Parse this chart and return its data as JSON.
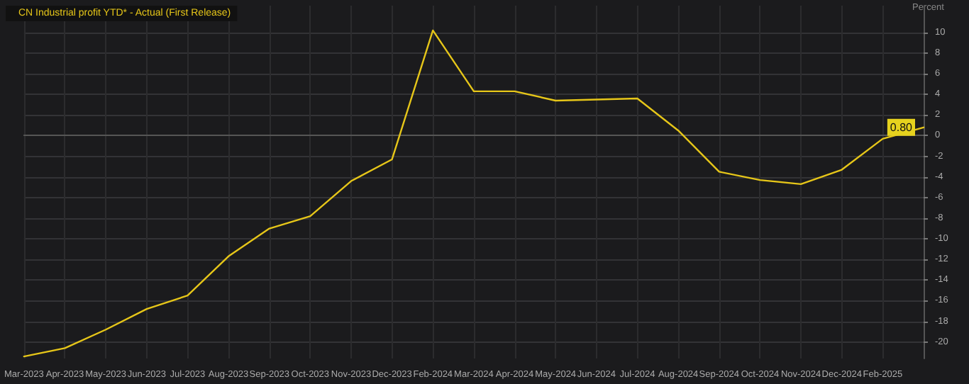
{
  "chart_data": {
    "type": "line",
    "ylabel": "Percent",
    "categories": [
      "Mar-2023",
      "Apr-2023",
      "May-2023",
      "Jun-2023",
      "Jul-2023",
      "Aug-2023",
      "Sep-2023",
      "Oct-2023",
      "Nov-2023",
      "Dec-2023",
      "Feb-2024",
      "Mar-2024",
      "Apr-2024",
      "May-2024",
      "Jun-2024",
      "Jul-2024",
      "Aug-2024",
      "Sep-2024",
      "Oct-2024",
      "Nov-2024",
      "Dec-2024",
      "Feb-2025",
      null
    ],
    "series": [
      {
        "name": "CN Industrial profit YTD* - Actual (First Release)",
        "color": "#e6c619",
        "values": [
          -21.4,
          -20.6,
          -18.8,
          -16.8,
          -15.5,
          -11.7,
          -9.0,
          -7.8,
          -4.4,
          -2.3,
          10.2,
          4.3,
          4.3,
          3.4,
          3.5,
          3.6,
          0.5,
          -3.5,
          -4.3,
          -4.7,
          -3.3,
          -0.3,
          0.8
        ],
        "value_labels": [
          null,
          null,
          null,
          null,
          null,
          null,
          null,
          null,
          null,
          null,
          null,
          null,
          null,
          null,
          null,
          null,
          null,
          null,
          null,
          null,
          null,
          null,
          "0.80"
        ]
      }
    ],
    "ylim": [
      -21.6,
      12.6
    ],
    "yticks": [
      -20,
      -18,
      -16,
      -14,
      -12,
      -10,
      -8,
      -6,
      -4,
      -2,
      0,
      2,
      4,
      6,
      8,
      10
    ],
    "grid": true,
    "legend": "top left",
    "marker": "none",
    "line_style": "solid"
  }
}
